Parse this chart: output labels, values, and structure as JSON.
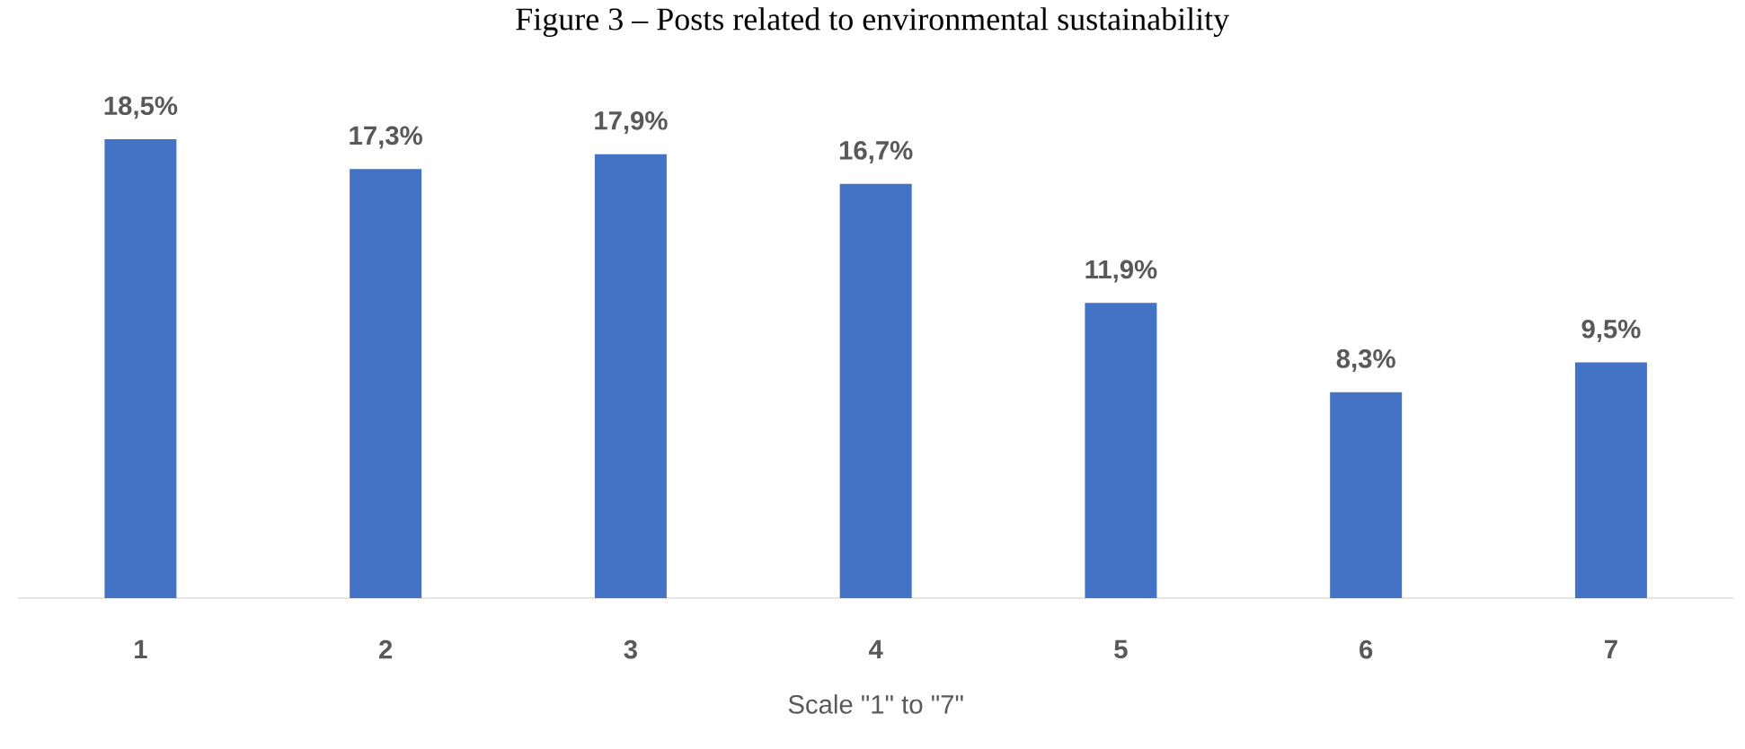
{
  "chart_data": {
    "type": "bar",
    "title": "Figure 3 – Posts related to environmental sustainability",
    "xlabel": "Scale \"1\" to \"7\"",
    "categories": [
      "1",
      "2",
      "3",
      "4",
      "5",
      "6",
      "7"
    ],
    "values": [
      18.5,
      17.3,
      17.9,
      16.7,
      11.9,
      8.3,
      9.5
    ],
    "value_labels": [
      "18,5%",
      "17,3%",
      "17,9%",
      "16,7%",
      "11,9%",
      "8,3%",
      "9,5%"
    ],
    "color": "#4472c4"
  }
}
